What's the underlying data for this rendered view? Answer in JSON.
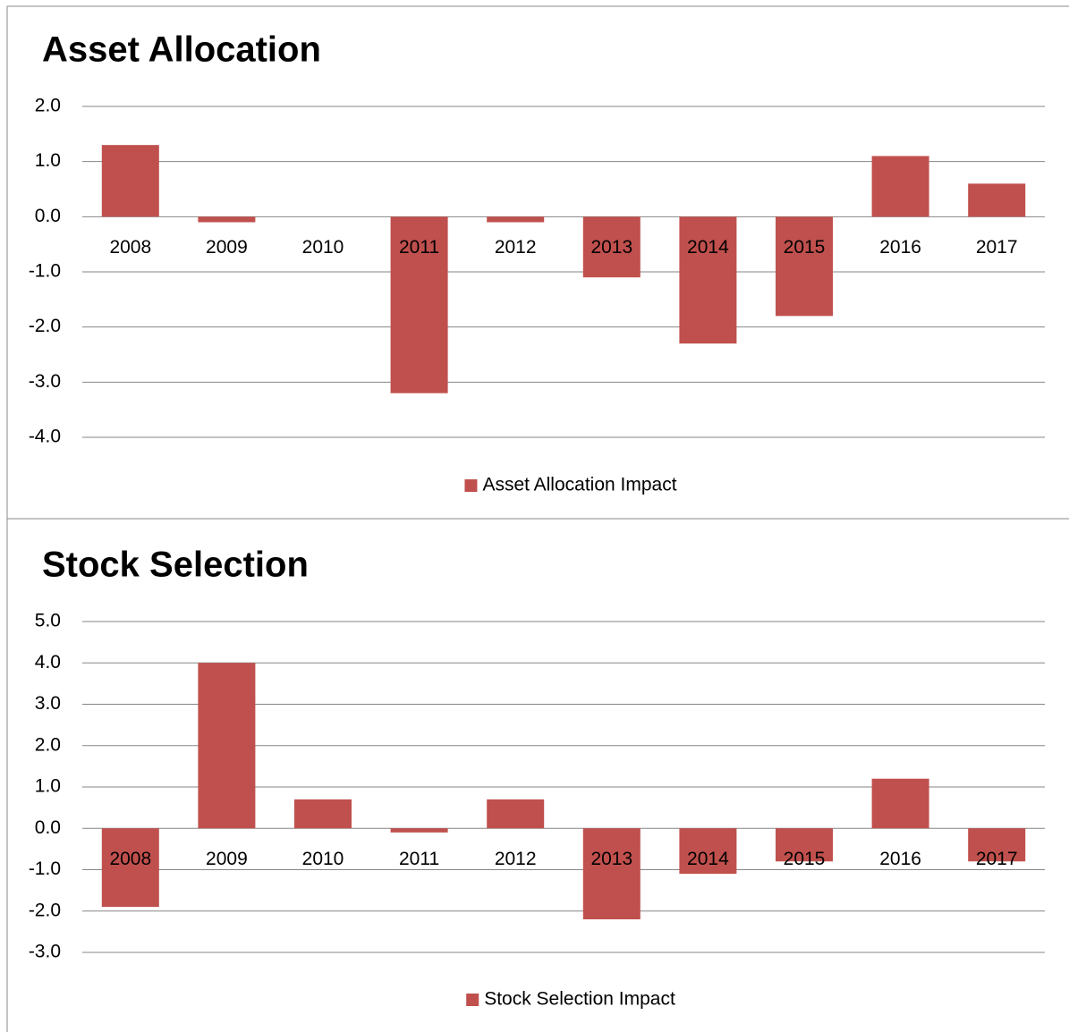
{
  "chart_data": [
    {
      "type": "bar",
      "title": "Asset Allocation",
      "categories": [
        "2008",
        "2009",
        "2010",
        "2011",
        "2012",
        "2013",
        "2014",
        "2015",
        "2016",
        "2017"
      ],
      "series": [
        {
          "name": "Asset Allocation Impact",
          "color": "#c0504d",
          "values": [
            1.3,
            -0.1,
            0,
            -3.2,
            -0.1,
            -1.1,
            -2.3,
            -1.8,
            1.1,
            0.6
          ]
        }
      ],
      "ylim": [
        -4,
        2
      ],
      "yticks": [
        {
          "value": 2,
          "label": "2.0"
        },
        {
          "value": 1,
          "label": "1.0"
        },
        {
          "value": 0,
          "label": "0.0"
        },
        {
          "value": -1,
          "label": "-1.0"
        },
        {
          "value": -2,
          "label": "-2.0"
        },
        {
          "value": -3,
          "label": "-3.0"
        },
        {
          "value": -4,
          "label": "-4.0"
        }
      ],
      "grid": true,
      "legend": "bottom"
    },
    {
      "type": "bar",
      "title": "Stock Selection",
      "categories": [
        "2008",
        "2009",
        "2010",
        "2011",
        "2012",
        "2013",
        "2014",
        "2015",
        "2016",
        "2017"
      ],
      "series": [
        {
          "name": "Stock Selection Impact",
          "color": "#c0504d",
          "values": [
            -1.9,
            4.0,
            0.7,
            -0.1,
            0.7,
            -2.2,
            -1.1,
            -0.8,
            1.2,
            -0.8
          ]
        }
      ],
      "ylim": [
        -3,
        5
      ],
      "yticks": [
        {
          "value": 5,
          "label": "5.0"
        },
        {
          "value": 4,
          "label": "4.0"
        },
        {
          "value": 3,
          "label": "3.0"
        },
        {
          "value": 2,
          "label": "2.0"
        },
        {
          "value": 1,
          "label": "1.0"
        },
        {
          "value": 0,
          "label": "0.0"
        },
        {
          "value": -1,
          "label": "-1.0"
        },
        {
          "value": -2,
          "label": "-2.0"
        },
        {
          "value": -3,
          "label": "-3.0"
        }
      ],
      "grid": true,
      "legend": "bottom"
    }
  ]
}
